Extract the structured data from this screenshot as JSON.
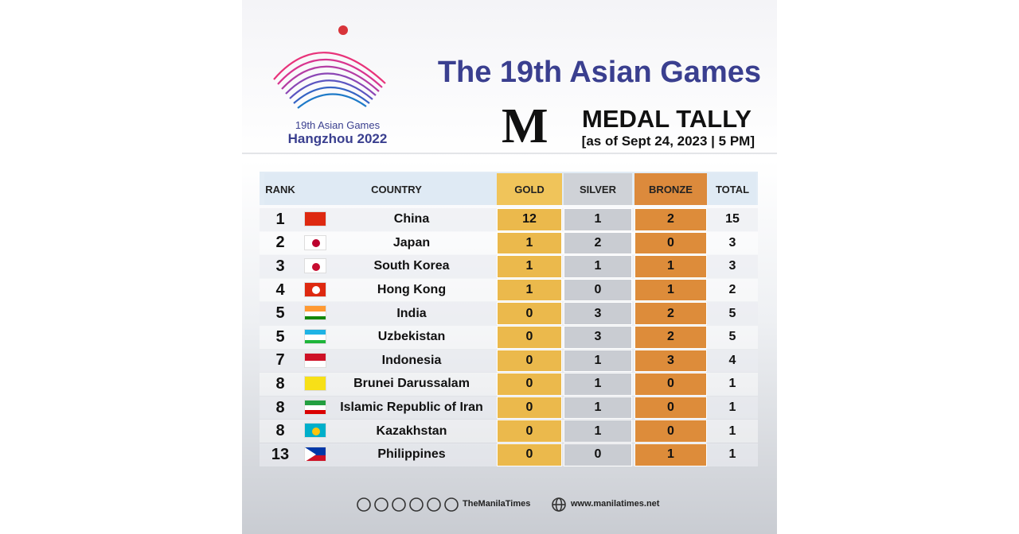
{
  "header": {
    "logo_line1": "19th Asian Games",
    "logo_line2": "Hangzhou 2022",
    "title": "The 19th Asian Games",
    "masthead": "M",
    "subtitle": "MEDAL TALLY",
    "date": "[as of Sept 24, 2023 | 5 PM]"
  },
  "table": {
    "columns": [
      "RANK",
      "COUNTRY",
      "GOLD",
      "SILVER",
      "BRONZE",
      "TOTAL"
    ],
    "rows": [
      [
        "1",
        "China",
        "12",
        "1",
        "2",
        "15"
      ],
      [
        "2",
        "Japan",
        "1",
        "2",
        "0",
        "3"
      ],
      [
        "3",
        "South Korea",
        "1",
        "1",
        "1",
        "3"
      ],
      [
        "4",
        "Hong Kong",
        "1",
        "0",
        "1",
        "2"
      ],
      [
        "5",
        "India",
        "0",
        "3",
        "2",
        "5"
      ],
      [
        "5",
        "Uzbekistan",
        "0",
        "3",
        "2",
        "5"
      ],
      [
        "7",
        "Indonesia",
        "0",
        "1",
        "3",
        "4"
      ],
      [
        "8",
        "Brunei Darussalam",
        "0",
        "1",
        "0",
        "1"
      ],
      [
        "8",
        "Islamic Republic of Iran",
        "0",
        "1",
        "0",
        "1"
      ],
      [
        "8",
        "Kazakhstan",
        "0",
        "1",
        "0",
        "1"
      ],
      [
        "13",
        "Philippines",
        "0",
        "0",
        "1",
        "1"
      ]
    ]
  },
  "footer": {
    "social": "TheManilaTimes",
    "website": "www.manilatimes.net"
  }
}
